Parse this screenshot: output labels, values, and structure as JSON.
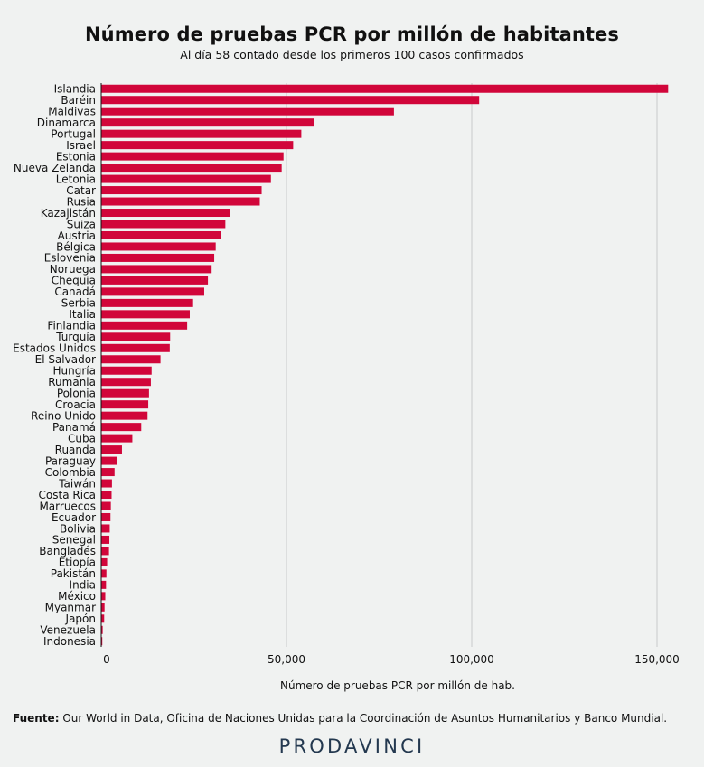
{
  "chart_data": {
    "type": "bar",
    "orientation": "horizontal",
    "title": "Número de pruebas PCR por millón de habitantes",
    "subtitle": "Al día 58 contado desde los primeros 100 casos confirmados",
    "xlabel": "Número de pruebas PCR por millón de hab.",
    "ylabel": "",
    "xlim": [
      0,
      160000
    ],
    "xticks": [
      0,
      50000,
      100000,
      150000
    ],
    "xtick_labels": [
      "0",
      "50,000",
      "100,000",
      "150,000"
    ],
    "grid": "vertical",
    "bar_color": "#d1063a",
    "grid_color": "#c8cbca",
    "categories": [
      "Islandia",
      "Baréin",
      "Maldivas",
      "Dinamarca",
      "Portugal",
      "Israel",
      "Estonia",
      "Nueva Zelanda",
      "Letonia",
      "Catar",
      "Rusia",
      "Kazajistán",
      "Suiza",
      "Austria",
      "Bélgica",
      "Eslovenia",
      "Noruega",
      "Chequia",
      "Canadá",
      "Serbia",
      "Italia",
      "Finlandia",
      "Turquía",
      "Estados Unidos",
      "El Salvador",
      "Hungría",
      "Rumania",
      "Polonia",
      "Croacia",
      "Reino Unido",
      "Panamá",
      "Cuba",
      "Ruanda",
      "Paraguay",
      "Colombia",
      "Taiwán",
      "Costa Rica",
      "Marruecos",
      "Ecuador",
      "Bolivia",
      "Senegal",
      "Bangladés",
      "Etiopía",
      "Pakistán",
      "India",
      "México",
      "Myanmar",
      "Japón",
      "Venezuela",
      "Indonesia"
    ],
    "values": [
      153000,
      102000,
      79000,
      57500,
      54000,
      51800,
      49200,
      48700,
      45800,
      43300,
      42800,
      34800,
      33500,
      32200,
      30900,
      30500,
      29800,
      28800,
      27800,
      24800,
      23900,
      23200,
      18600,
      18500,
      16000,
      13600,
      13400,
      12900,
      12700,
      12500,
      10800,
      8400,
      5600,
      4300,
      3600,
      2900,
      2800,
      2600,
      2500,
      2300,
      2200,
      2100,
      1600,
      1400,
      1300,
      1100,
      900,
      800,
      400,
      300
    ]
  },
  "footer": {
    "source_label": "Fuente:",
    "source_text": "Our World in Data, Oficina de Naciones Unidas para la Coordinación de Asuntos Humanitarios y Banco Mundial.",
    "brand": "PRODAVINCI"
  }
}
